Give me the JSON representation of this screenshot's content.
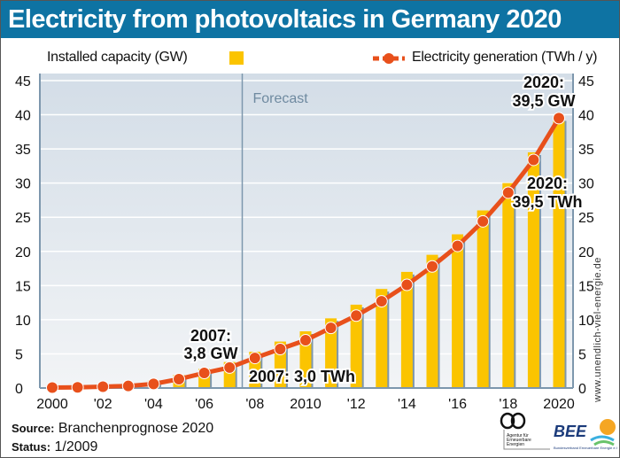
{
  "title": "Electricity from photovoltaics in Germany 2020",
  "legend": {
    "bars_label": "Installed capacity (GW)",
    "line_label": "Electricity generation (TWh / y)"
  },
  "colors": {
    "title_bg": "#0e73a3",
    "bar": "#fbc400",
    "line": "#e8501b",
    "plot_bg_top": "#d3dde7",
    "plot_bg_bottom": "#f2f4f6"
  },
  "forecast_label": "Forecast",
  "source_label": "Source:",
  "source_value": "Branchenprognose 2020",
  "status_label": "Status:",
  "status_value": "1/2009",
  "website": "www.unendlich-viel-energie.de",
  "logos": {
    "aee": "Agentur für Erneuerbare Energien",
    "bee": "BEE",
    "bee_sub": "Bundesverband Erneuerbare Energie e.V."
  },
  "chart_data": {
    "type": "bar",
    "title": "Electricity from photovoltaics in Germany 2020",
    "x": [
      2000,
      2001,
      2002,
      2003,
      2004,
      2005,
      2006,
      2007,
      2008,
      2009,
      2010,
      2011,
      2012,
      2013,
      2014,
      2015,
      2016,
      2017,
      2018,
      2019,
      2020
    ],
    "x_tick_labels": [
      "2000",
      "'02",
      "'04",
      "'06",
      "'08",
      "2010",
      "'12",
      "'14",
      "'16",
      "'18",
      "2020"
    ],
    "x_tick_years": [
      2000,
      2002,
      2004,
      2006,
      2008,
      2010,
      2012,
      2014,
      2016,
      2018,
      2020
    ],
    "ylim": [
      0,
      45
    ],
    "y_ticks": [
      0,
      5,
      10,
      15,
      20,
      25,
      30,
      35,
      40,
      45
    ],
    "forecast_start": 2007.5,
    "series": [
      {
        "name": "Installed capacity (GW)",
        "type": "bar",
        "values": [
          0.1,
          0.2,
          0.3,
          0.4,
          1.1,
          1.9,
          2.8,
          3.8,
          5.3,
          6.8,
          8.3,
          10.2,
          12.2,
          14.5,
          17.0,
          19.5,
          22.5,
          26.0,
          30.0,
          34.5,
          39.5
        ]
      },
      {
        "name": "Electricity generation (TWh/y)",
        "type": "line",
        "values": [
          0.06,
          0.1,
          0.2,
          0.3,
          0.6,
          1.3,
          2.2,
          3.0,
          4.4,
          5.7,
          7.0,
          8.8,
          10.6,
          12.7,
          15.1,
          17.8,
          20.8,
          24.4,
          28.6,
          33.4,
          39.5
        ]
      }
    ],
    "annotations": [
      {
        "line1": "2007:",
        "line2": "3,8 GW",
        "year": 2007,
        "series": "bar"
      },
      {
        "line1": "2007: 3,0 TWh",
        "line2": "",
        "year": 2007,
        "series": "line"
      },
      {
        "line1": "2020:",
        "line2": "39,5 GW",
        "year": 2020,
        "series": "bar"
      },
      {
        "line1": "2020:",
        "line2": "39,5 TWh",
        "year": 2020,
        "series": "line"
      }
    ],
    "legend_position": "top"
  }
}
